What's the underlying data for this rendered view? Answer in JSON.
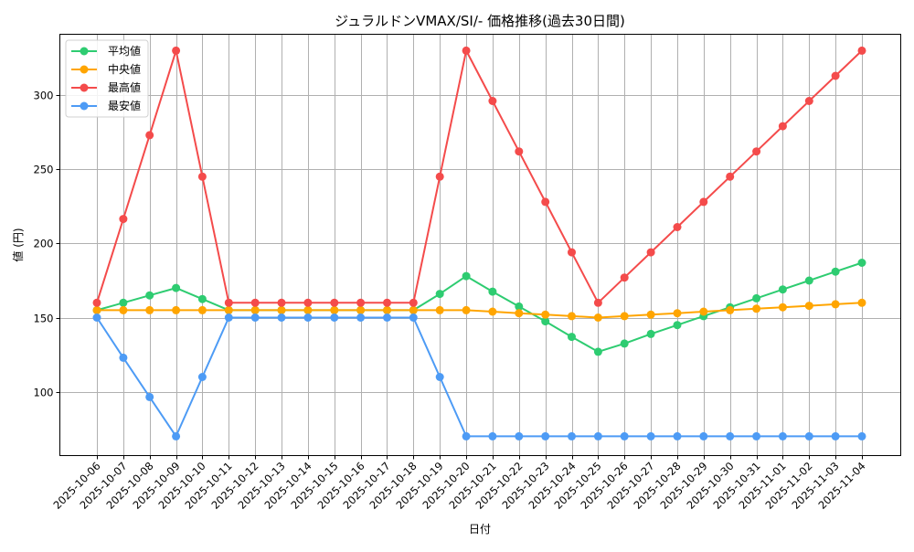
{
  "chart_data": {
    "type": "line",
    "title": "ジュラルドンVMAX/SI/- 価格推移(過去30日間)",
    "xlabel": "日付",
    "ylabel": "値 (円)",
    "ylim": [
      57,
      341
    ],
    "yticks": [
      100,
      150,
      200,
      250,
      300
    ],
    "grid": true,
    "legend_position": "upper left",
    "categories": [
      "2025-10-06",
      "2025-10-07",
      "2025-10-08",
      "2025-10-09",
      "2025-10-10",
      "2025-10-11",
      "2025-10-12",
      "2025-10-13",
      "2025-10-14",
      "2025-10-15",
      "2025-10-16",
      "2025-10-17",
      "2025-10-18",
      "2025-10-19",
      "2025-10-20",
      "2025-10-21",
      "2025-10-22",
      "2025-10-23",
      "2025-10-24",
      "2025-10-25",
      "2025-10-26",
      "2025-10-27",
      "2025-10-28",
      "2025-10-29",
      "2025-10-30",
      "2025-10-31",
      "2025-11-01",
      "2025-11-02",
      "2025-11-03",
      "2025-11-04"
    ],
    "series": [
      {
        "name": "平均値",
        "color": "#2ecc71",
        "values": [
          155,
          160,
          165,
          170,
          162.5,
          155,
          155,
          155,
          155,
          155,
          155,
          155,
          155,
          166,
          178,
          167.5,
          157.5,
          147.5,
          137,
          127,
          132.5,
          139,
          145,
          151,
          157,
          163,
          169,
          175,
          181,
          187
        ]
      },
      {
        "name": "中央値",
        "color": "#ffa500",
        "values": [
          155,
          155,
          155,
          155,
          155,
          155,
          155,
          155,
          155,
          155,
          155,
          155,
          155,
          155,
          155,
          154,
          153,
          152,
          151,
          150,
          151,
          152,
          153,
          154,
          155,
          156,
          157,
          158,
          159,
          160
        ]
      },
      {
        "name": "最高値",
        "color": "#f44b4b",
        "values": [
          160,
          216.5,
          273,
          330,
          245,
          160,
          160,
          160,
          160,
          160,
          160,
          160,
          160,
          245,
          330,
          296,
          262,
          228,
          194,
          160,
          177,
          194,
          211,
          228,
          245,
          262,
          279,
          296,
          313,
          330
        ]
      },
      {
        "name": "最安値",
        "color": "#4d9bf5",
        "values": [
          150,
          123,
          96.5,
          70,
          110,
          150,
          150,
          150,
          150,
          150,
          150,
          150,
          150,
          110,
          70,
          70,
          70,
          70,
          70,
          70,
          70,
          70,
          70,
          70,
          70,
          70,
          70,
          70,
          70,
          70
        ]
      }
    ]
  }
}
